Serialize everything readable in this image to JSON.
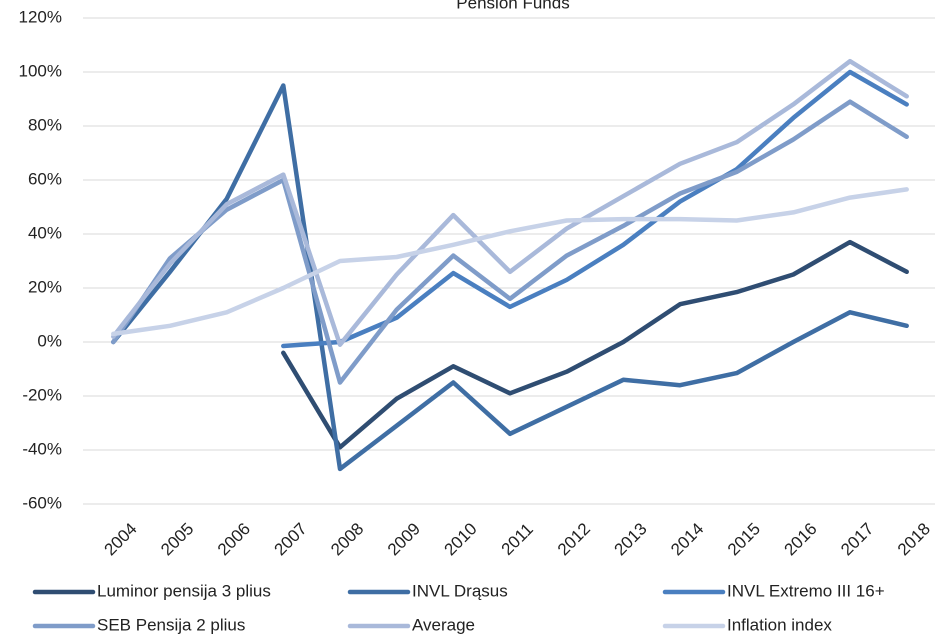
{
  "chart_data": {
    "type": "line",
    "title": "Pension Funds",
    "categories": [
      "2004",
      "2005",
      "2006",
      "2007",
      "2008",
      "2009",
      "2010",
      "2011",
      "2012",
      "2013",
      "2014",
      "2015",
      "2016",
      "2017",
      "2018"
    ],
    "series": [
      {
        "name": "Luminor pensija 3 plius",
        "color": "#2f4d72",
        "values": [
          null,
          null,
          null,
          -4,
          -39,
          -21,
          -9,
          -19,
          -11,
          0,
          14,
          18.5,
          25,
          37,
          26
        ]
      },
      {
        "name": "INVL Drąsus",
        "color": "#3f6ea4",
        "values": [
          0,
          26,
          53,
          95,
          -47,
          -31,
          -15,
          -34,
          -24,
          -14,
          -16,
          -11.5,
          0,
          11,
          6
        ]
      },
      {
        "name": "INVL Extremo III 16+",
        "color": "#4a7fc0",
        "values": [
          null,
          null,
          null,
          -1.5,
          0,
          9,
          25.5,
          13,
          23,
          36,
          52,
          64,
          83,
          100,
          88
        ]
      },
      {
        "name": "SEB Pensija 2 plius",
        "color": "#7f9cc9",
        "values": [
          0,
          31,
          49,
          60,
          -15,
          12,
          32,
          16,
          32,
          43,
          55,
          63,
          75,
          89,
          76
        ]
      },
      {
        "name": "Average",
        "color": "#a9b9da",
        "values": [
          2,
          29,
          51,
          62,
          -1,
          25,
          47,
          26,
          42,
          54,
          66,
          74,
          88,
          104,
          91
        ]
      },
      {
        "name": "Inflation index",
        "color": "#c7d2e8",
        "values": [
          3,
          6,
          11,
          20,
          30,
          31.5,
          36,
          41,
          45,
          45.5,
          45.5,
          45,
          48,
          53.5,
          56.5
        ]
      }
    ],
    "ylim": [
      -60,
      120
    ],
    "yticks": [
      {
        "value": -60,
        "label": "-60%"
      },
      {
        "value": -40,
        "label": "-40%"
      },
      {
        "value": -20,
        "label": "-20%"
      },
      {
        "value": 0,
        "label": "0%"
      },
      {
        "value": 20,
        "label": "20%"
      },
      {
        "value": 40,
        "label": "40%"
      },
      {
        "value": 60,
        "label": "60%"
      },
      {
        "value": 80,
        "label": "80%"
      },
      {
        "value": 100,
        "label": "100%"
      },
      {
        "value": 120,
        "label": "120%"
      }
    ],
    "grid": true,
    "legend": "bottom"
  }
}
